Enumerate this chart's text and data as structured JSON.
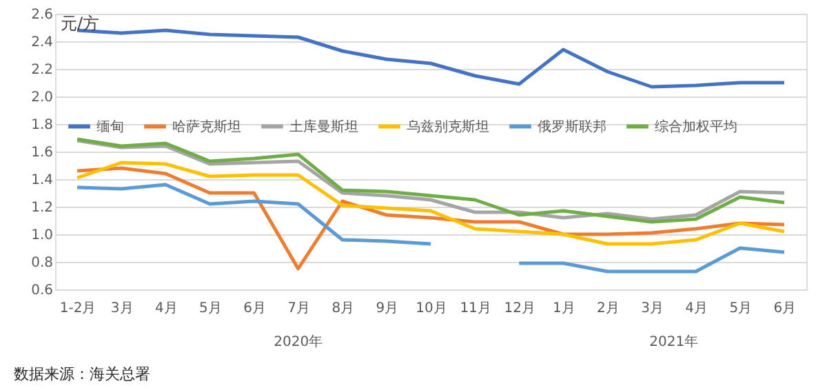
{
  "chart_data": {
    "type": "line",
    "ylabel": "元/方",
    "categories": [
      "1-2月",
      "3月",
      "4月",
      "5月",
      "6月",
      "7月",
      "8月",
      "9月",
      "10月",
      "11月",
      "12月",
      "1月",
      "2月",
      "3月",
      "4月",
      "5月",
      "6月"
    ],
    "series": [
      {
        "name": "缅甸",
        "color": "#4472c4",
        "values": [
          2.48,
          2.46,
          2.48,
          2.45,
          2.44,
          2.43,
          2.33,
          2.27,
          2.24,
          2.15,
          2.09,
          2.34,
          2.18,
          2.07,
          2.08,
          2.1,
          2.1
        ]
      },
      {
        "name": "哈萨克斯坦",
        "color": "#ed7d31",
        "values": [
          1.46,
          1.48,
          1.44,
          1.3,
          1.3,
          0.75,
          1.24,
          1.14,
          1.12,
          1.09,
          1.09,
          1.0,
          1.0,
          1.01,
          1.04,
          1.08,
          1.07
        ]
      },
      {
        "name": "土库曼斯坦",
        "color": "#a5a5a5",
        "values": [
          1.68,
          1.63,
          1.64,
          1.51,
          1.52,
          1.53,
          1.3,
          1.28,
          1.25,
          1.16,
          1.16,
          1.12,
          1.15,
          1.11,
          1.14,
          1.31,
          1.3
        ]
      },
      {
        "name": "乌兹别克斯坦",
        "color": "#ffc000",
        "values": [
          1.41,
          1.52,
          1.51,
          1.42,
          1.43,
          1.43,
          1.21,
          1.19,
          1.17,
          1.04,
          1.02,
          1.0,
          0.93,
          0.93,
          0.96,
          1.08,
          1.02
        ]
      },
      {
        "name": "俄罗斯联邦",
        "color": "#5b9bd5",
        "values": [
          1.34,
          1.33,
          1.36,
          1.22,
          1.24,
          1.22,
          0.96,
          0.95,
          0.93,
          null,
          0.79,
          0.79,
          0.73,
          0.73,
          0.73,
          0.9,
          0.87
        ]
      },
      {
        "name": "综合加权平均",
        "color": "#70ad47",
        "values": [
          1.69,
          1.64,
          1.66,
          1.53,
          1.55,
          1.58,
          1.32,
          1.31,
          1.28,
          1.25,
          1.14,
          1.17,
          1.13,
          1.09,
          1.11,
          1.27,
          1.23
        ]
      }
    ],
    "ylim": [
      0.6,
      2.6
    ],
    "yticks": [
      0.6,
      0.8,
      {
        "value": 1,
        "label": "1.0"
      },
      1.2,
      1.4,
      1.6,
      1.8,
      {
        "value": 2,
        "label": "2.0"
      },
      2.2,
      2.4,
      2.6
    ],
    "grid": "y",
    "legend": "top",
    "marker": "none",
    "line_style": "solid",
    "annotations": [
      "2020年",
      "2021年",
      "数据来源：海关总署"
    ]
  }
}
